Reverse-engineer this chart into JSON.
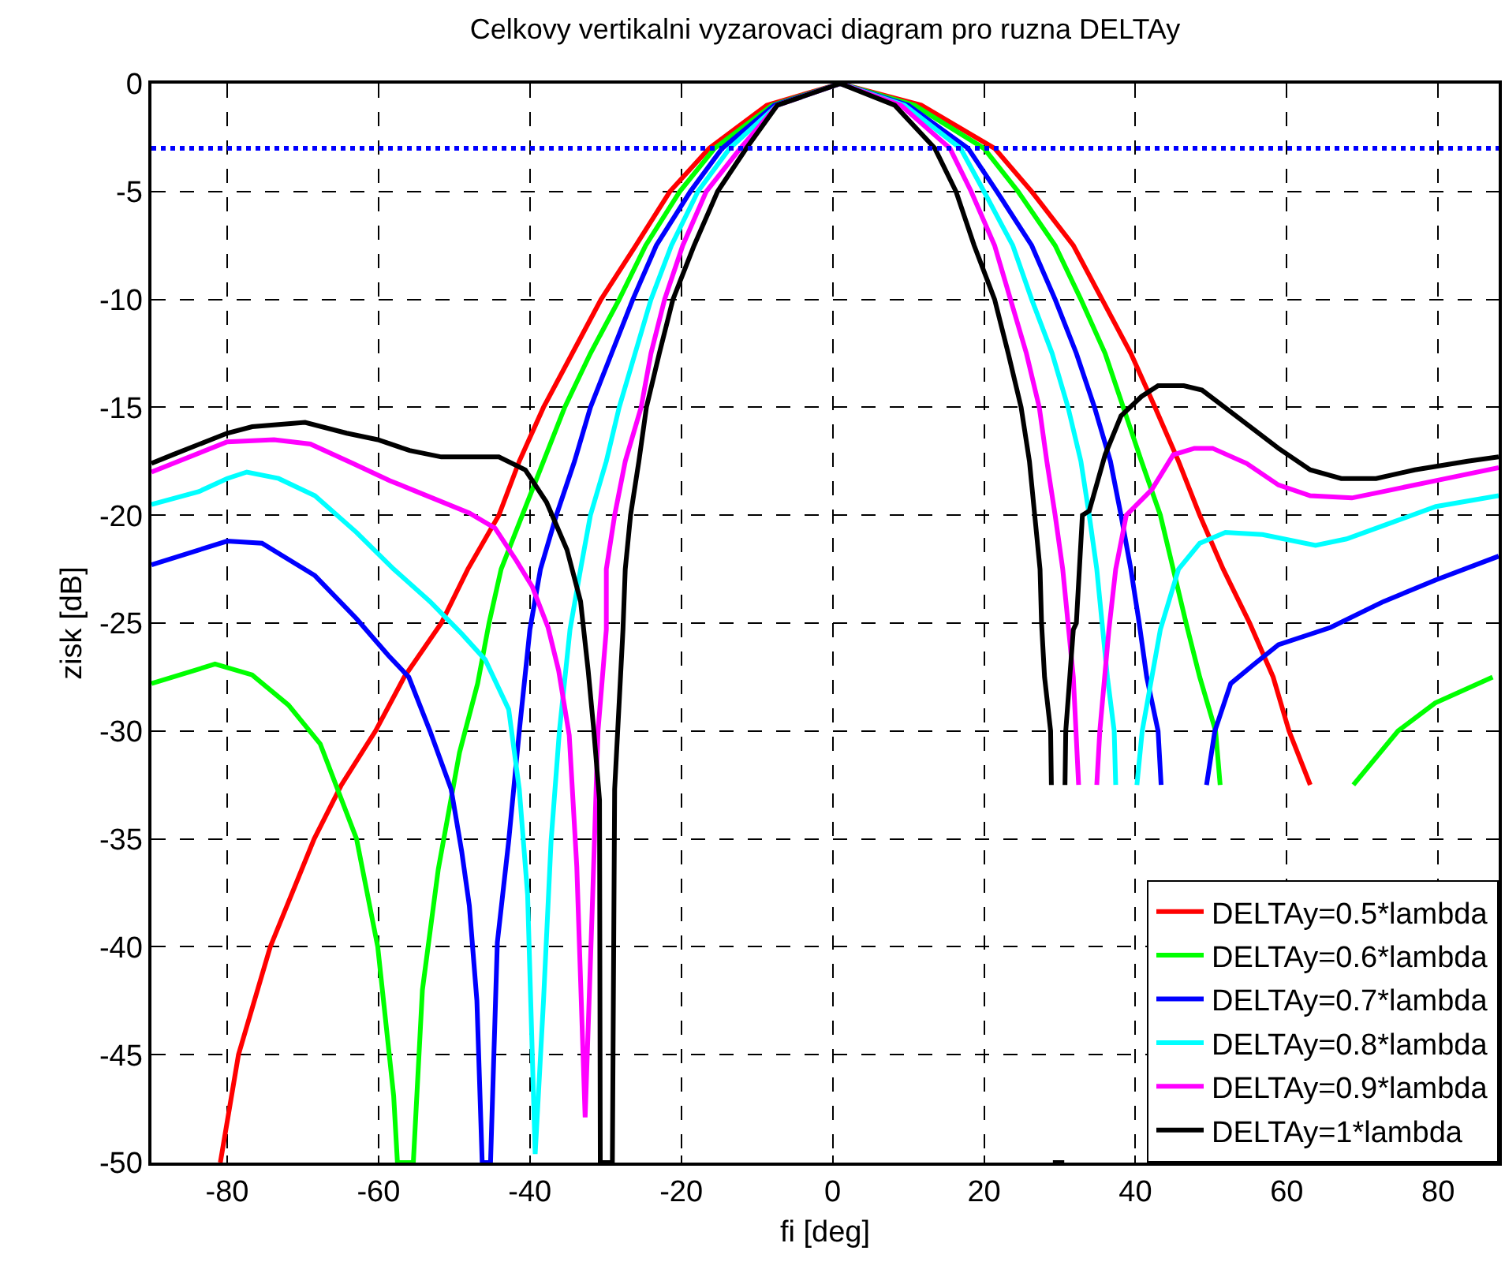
{
  "chart_data": {
    "type": "line",
    "title": "Celkovy vertikalni vyzarovaci diagram pro ruzna DELTAy",
    "xlabel": "fi [deg]",
    "ylabel": "zisk [dB]",
    "xlim": [
      -90,
      88
    ],
    "ylim": [
      -50,
      0
    ],
    "xticks": [
      -80,
      -60,
      -40,
      -20,
      0,
      20,
      40,
      60,
      80
    ],
    "yticks": [
      -50,
      -45,
      -40,
      -35,
      -30,
      -25,
      -20,
      -15,
      -10,
      -5,
      0
    ],
    "grid": true,
    "legend": "bottom right",
    "line_style": "solid",
    "ref_lines": [
      {
        "axis": "y",
        "value": -3,
        "color": "#0000ff",
        "line_style": "dotted"
      }
    ],
    "series": [
      {
        "name": "DELTAy=0.5*lambda",
        "color": "#ff0000",
        "x": [
          -80.9,
          -78.5,
          -74.3,
          -68.5,
          -64.9,
          -60.4,
          -56.6,
          -51.7,
          -48.2,
          -44.1,
          -41.4,
          -38.2,
          -34.4,
          -30.6,
          -26.0,
          -21.5,
          -16.3,
          -12.5,
          -8.7,
          1,
          11.7,
          21.4,
          26.3,
          31.8,
          35.6,
          39.4,
          42.6,
          45.7,
          48.5,
          51.6,
          55.1,
          58.2,
          60.3,
          63.1
        ],
        "values": [
          -50,
          -45,
          -40,
          -35,
          -32.5,
          -30,
          -27.5,
          -25,
          -22.5,
          -20,
          -17.5,
          -15,
          -12.5,
          -10,
          -7.5,
          -5,
          -3,
          -2,
          -1,
          0,
          -1,
          -3,
          -5,
          -7.5,
          -10,
          -12.5,
          -15,
          -17.5,
          -20,
          -22.5,
          -25,
          -27.5,
          -30,
          -32.5
        ]
      },
      {
        "name": "DELTAy=0.6*lambda",
        "color": "#00ff00",
        "x": [
          -90,
          -81.6,
          -76.7,
          -71.9,
          -67.7,
          -62.9,
          -60.1,
          -58,
          -57.5,
          -55.4,
          -54.2,
          -52.1,
          -49.3,
          -46.9,
          -45.4,
          -43.8,
          -41,
          -38.2,
          -35.4,
          -32,
          -28.2,
          -24.7,
          -20.2,
          -15.6,
          -8,
          1,
          10.8,
          20,
          24.5,
          29.4,
          32.8,
          36,
          38.4,
          40.8,
          43.3,
          45,
          46.7,
          48.5,
          50.6,
          51.2,
          60,
          68.8,
          74.7,
          79.6,
          87.2
        ],
        "values": [
          -27.8,
          -26.9,
          -27.4,
          -28.8,
          -30.6,
          -35,
          -40,
          -46.9,
          -50,
          -50,
          -42,
          -36.4,
          -31,
          -27.8,
          -25,
          -22.5,
          -20,
          -17.5,
          -15,
          -12.5,
          -10,
          -7.5,
          -5,
          -3,
          -1,
          0,
          -1,
          -3,
          -5,
          -7.5,
          -10,
          -12.5,
          -15,
          -17.5,
          -20,
          -22.5,
          -25,
          -27.5,
          -30,
          -32.5,
          null,
          -32.5,
          -30,
          -28.7,
          -27.5
        ]
      },
      {
        "name": "DELTAy=0.7*lambda",
        "color": "#0000ff",
        "x": [
          -90,
          -80,
          -75.4,
          -68.4,
          -62.9,
          -58.7,
          -56,
          -53.2,
          -50.4,
          -49,
          -48,
          -47,
          -46.3,
          -45.2,
          -44.3,
          -42.8,
          -41.4,
          -40,
          -38.6,
          -36.5,
          -34.1,
          -32,
          -29.2,
          -26.4,
          -23.3,
          -18.8,
          -14.6,
          -7.7,
          1,
          10,
          17.9,
          21.7,
          26.3,
          29.4,
          32.2,
          34.6,
          36.7,
          38.1,
          39.4,
          40.5,
          41.5,
          43,
          43.4,
          46,
          49.4,
          50.5,
          52.6,
          55.7,
          58.9,
          65.8,
          72.8,
          79.7,
          88
        ],
        "values": [
          -22.3,
          -21.2,
          -21.3,
          -22.8,
          -24.8,
          -26.5,
          -27.5,
          -30,
          -32.7,
          -35.6,
          -38.1,
          -42.5,
          -50,
          -50,
          -39.8,
          -35.1,
          -30,
          -25.3,
          -22.5,
          -20,
          -17.5,
          -15,
          -12.5,
          -10,
          -7.5,
          -5,
          -3,
          -1,
          0,
          -1,
          -3,
          -5,
          -7.5,
          -10,
          -12.5,
          -15,
          -17.5,
          -20,
          -22.5,
          -25,
          -27.5,
          -30,
          -32.5,
          null,
          -32.5,
          -30,
          -27.8,
          -26.9,
          -26,
          -25.2,
          -24,
          -23,
          -21.9
        ]
      },
      {
        "name": "DELTAy=0.8*lambda",
        "color": "#00ffff",
        "x": [
          -90,
          -83.7,
          -80,
          -77.4,
          -73.2,
          -68.4,
          -62.9,
          -58,
          -53.2,
          -49,
          -45.9,
          -42.8,
          -41.4,
          -40.3,
          -39.3,
          -38.2,
          -37.2,
          -36.1,
          -34.7,
          -33.3,
          -32,
          -29.9,
          -28.2,
          -26.1,
          -24,
          -21.3,
          -17.8,
          -13.6,
          -7.3,
          1,
          9.5,
          16.9,
          20,
          23.8,
          26.3,
          29,
          31.1,
          32.8,
          33.9,
          34.9,
          35.6,
          36.3,
          37.2,
          37.4,
          39,
          40.2,
          40.9,
          43.3,
          45.7,
          48.5,
          51.9,
          56.8,
          63.8,
          67.9,
          74.2,
          79.7,
          88
        ],
        "values": [
          -19.5,
          -18.9,
          -18.3,
          -18,
          -18.3,
          -19.1,
          -20.8,
          -22.5,
          -24,
          -25.5,
          -26.7,
          -29,
          -32.7,
          -37.6,
          -49.6,
          -42.5,
          -35.1,
          -30,
          -25.3,
          -22.5,
          -20,
          -17.5,
          -15,
          -12.5,
          -10,
          -7.5,
          -5,
          -3,
          -1,
          0,
          -1,
          -3,
          -5,
          -7.5,
          -10,
          -12.5,
          -15,
          -17.5,
          -20,
          -22.5,
          -25,
          -27.5,
          -30,
          -32.5,
          null,
          -32.5,
          -30,
          -25.3,
          -22.5,
          -21.3,
          -20.8,
          -20.9,
          -21.4,
          -21.1,
          -20.3,
          -19.6,
          -19.1
        ]
      },
      {
        "name": "DELTAy=0.9*lambda",
        "color": "#ff00ff",
        "x": [
          -90,
          -80,
          -73.8,
          -69,
          -63.4,
          -58.5,
          -55,
          -48,
          -44.6,
          -41.8,
          -39.7,
          -37.6,
          -36.2,
          -34.8,
          -33.8,
          -32.7,
          -31.7,
          -31,
          -29.9,
          -29.9,
          -28.8,
          -27.4,
          -25.3,
          -24,
          -22.2,
          -19.8,
          -16.7,
          -12.2,
          -7.3,
          1,
          9,
          15.5,
          18.3,
          21.4,
          23.5,
          25.6,
          27.3,
          28.3,
          29.4,
          30.4,
          31.1,
          31.8,
          32.5,
          33.7,
          34.9,
          35.3,
          36.5,
          37.4,
          38.8,
          42.2,
          45,
          47.8,
          50.2,
          54.7,
          58.9,
          63.1,
          68.6,
          72.8,
          79.7,
          88
        ],
        "values": [
          -18,
          -16.6,
          -16.5,
          -16.7,
          -17.6,
          -18.4,
          -18.9,
          -19.9,
          -20.6,
          -22.1,
          -23.3,
          -25.2,
          -27.2,
          -30.2,
          -36.3,
          -47.9,
          -37.6,
          -30,
          -25.3,
          -22.5,
          -20,
          -17.5,
          -15,
          -12.5,
          -10,
          -7.5,
          -5,
          -3,
          -1,
          0,
          -1,
          -3,
          -5,
          -7.5,
          -10,
          -12.5,
          -15,
          -17.5,
          -20,
          -22.5,
          -25,
          -27.5,
          -32.5,
          null,
          -32.5,
          -30,
          -25.3,
          -22.5,
          -20,
          -18.8,
          -17.2,
          -16.9,
          -16.9,
          -17.6,
          -18.6,
          -19.1,
          -19.2,
          -18.9,
          -18.4,
          -17.8
        ]
      },
      {
        "name": "DELTAy=1*lambda",
        "color": "#000000",
        "x": [
          -90,
          -87.2,
          -80,
          -76.7,
          -69.7,
          -64.2,
          -60.1,
          -55.9,
          -51.7,
          -44.1,
          -40.6,
          -37.8,
          -35.1,
          -33.3,
          -32.3,
          -31.6,
          -30.8,
          -30.7,
          -29.1,
          -28.8,
          -27.7,
          -27.4,
          -26.7,
          -25.6,
          -24.6,
          -22.9,
          -21.1,
          -18.3,
          -15.2,
          -11.4,
          -7.3,
          1,
          8.2,
          13.5,
          16.3,
          18.7,
          21.4,
          23.2,
          24.9,
          26,
          26.7,
          27.4,
          27.6,
          28,
          28.8,
          28.9,
          29,
          29.1,
          30.6,
          30.65,
          30.7,
          30.8,
          31.8,
          32.2,
          32.6,
          33,
          33.9,
          36,
          38.1,
          40.8,
          43,
          46.4,
          48.8,
          53.3,
          58.9,
          63.1,
          67.2,
          71.8,
          76.9,
          83.9,
          88
        ],
        "values": [
          -17.6,
          -17.2,
          -16.2,
          -15.9,
          -15.7,
          -16.2,
          -16.5,
          -17,
          -17.3,
          -17.3,
          -17.9,
          -19.4,
          -21.6,
          -24,
          -27.2,
          -29.8,
          -33.2,
          -50,
          -50,
          -32.7,
          -25.3,
          -22.5,
          -20,
          -17.5,
          -15,
          -12.5,
          -10,
          -7.5,
          -5,
          -3,
          -1,
          0,
          -1,
          -3,
          -5,
          -7.5,
          -10,
          -12.5,
          -15,
          -17.5,
          -20,
          -22.5,
          -25,
          -27.5,
          -30,
          -32.5,
          null,
          -50,
          -50,
          null,
          -32.5,
          -30,
          -25.3,
          -25,
          -22.5,
          -20,
          -19.8,
          -17.2,
          -15.4,
          -14.5,
          -14,
          -14,
          -14.2,
          -15.4,
          -16.9,
          -17.9,
          -18.3,
          -18.3,
          -17.9,
          -17.5,
          -17.3
        ]
      }
    ]
  }
}
